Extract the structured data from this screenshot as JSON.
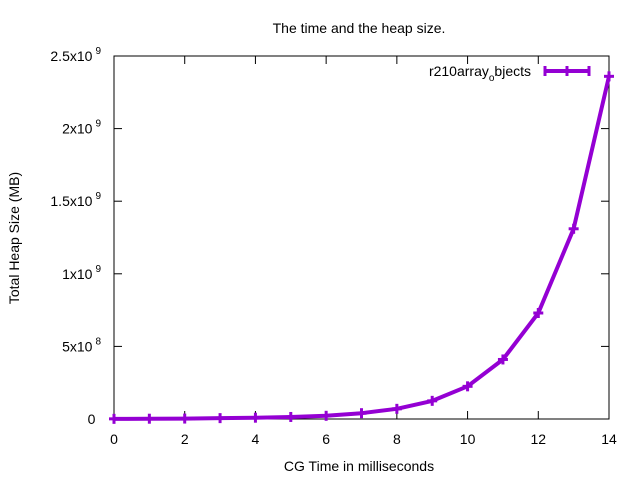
{
  "chart_data": {
    "type": "line",
    "title": "The time and the heap size.",
    "xlabel": "CG Time in milliseconds",
    "ylabel": "Total Heap Size (MB)",
    "xlim": [
      0,
      14
    ],
    "ylim": [
      0,
      2500000000
    ],
    "x_ticks": [
      0,
      2,
      4,
      6,
      8,
      10,
      12,
      14
    ],
    "y_ticks": [
      {
        "value": 0,
        "mantissa": "0",
        "exp": ""
      },
      {
        "value": 500000000,
        "mantissa": "5x10",
        "exp": "8"
      },
      {
        "value": 1000000000,
        "mantissa": "1x10",
        "exp": "9"
      },
      {
        "value": 1500000000,
        "mantissa": "1.5x10",
        "exp": "9"
      },
      {
        "value": 2000000000,
        "mantissa": "2x10",
        "exp": "9"
      },
      {
        "value": 2500000000,
        "mantissa": "2.5x10",
        "exp": "9"
      }
    ],
    "grid": false,
    "legend_position": "top-right",
    "legend": {
      "main": "r210array",
      "sub": "o",
      "rest": "bjects"
    },
    "series": [
      {
        "name": "r210array_objects",
        "color": "#9400d3",
        "x": [
          0,
          1,
          2,
          3,
          4,
          5,
          6,
          7,
          8,
          9,
          10,
          11,
          12,
          13,
          14
        ],
        "y": [
          1000000,
          2000000,
          3000000,
          6000000,
          9000000,
          14000000,
          22000000,
          40000000,
          70000000,
          125000000,
          225000000,
          410000000,
          730000000,
          1310000000,
          2360000000
        ]
      }
    ]
  }
}
